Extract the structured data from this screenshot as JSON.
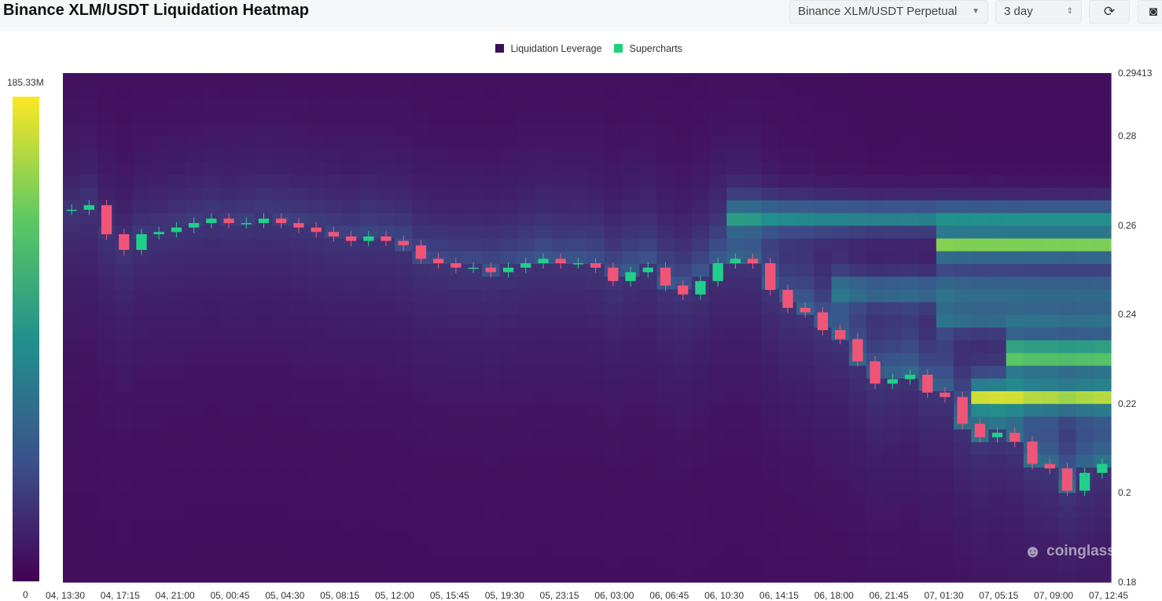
{
  "header": {
    "title": "Binance XLM/USDT Liquidation Heatmap",
    "symbol_select": "Binance XLM/USDT Perpetual",
    "range_select": "3 day",
    "refresh_icon": "refresh-icon",
    "camera_icon": "camera-icon"
  },
  "legend": [
    {
      "label": "Liquidation Leverage",
      "color": "#3b0f52"
    },
    {
      "label": "Supercharts",
      "color": "#1fd07a"
    }
  ],
  "colorbar": {
    "max_label": "185.33M",
    "min_label": "0"
  },
  "watermark": {
    "text": "coinglass",
    "icon": "coinglass-logo-icon"
  },
  "chart_data": {
    "type": "heatmap",
    "title": "Binance XLM/USDT Liquidation Heatmap",
    "x_ticks": [
      "04, 13:30",
      "04, 17:15",
      "04, 21:00",
      "05, 00:45",
      "05, 04:30",
      "05, 08:15",
      "05, 12:00",
      "05, 15:45",
      "05, 19:30",
      "05, 23:15",
      "06, 03:00",
      "06, 06:45",
      "06, 10:30",
      "06, 14:15",
      "06, 18:00",
      "06, 21:45",
      "07, 01:30",
      "07, 05:15",
      "07, 09:00",
      "07, 12:45"
    ],
    "y_ticks": [
      "0.29413",
      "0.28",
      "0.26",
      "0.24",
      "0.22",
      "0.2",
      "0.18"
    ],
    "ylim": [
      0.18,
      0.29413
    ],
    "colorscale": [
      "#440154",
      "#3b528b",
      "#21918c",
      "#5ec962",
      "#fde725"
    ],
    "color_range": [
      0,
      185330000
    ],
    "price_path": [
      [
        0,
        0.2635
      ],
      [
        1,
        0.2645
      ],
      [
        2,
        0.258
      ],
      [
        3,
        0.2545
      ],
      [
        4,
        0.258
      ],
      [
        5,
        0.2585
      ],
      [
        6,
        0.2595
      ],
      [
        7,
        0.2605
      ],
      [
        8,
        0.2615
      ],
      [
        9,
        0.2605
      ],
      [
        10,
        0.2605
      ],
      [
        11,
        0.2615
      ],
      [
        12,
        0.2605
      ],
      [
        13,
        0.2595
      ],
      [
        14,
        0.2585
      ],
      [
        15,
        0.2575
      ],
      [
        16,
        0.2565
      ],
      [
        17,
        0.2575
      ],
      [
        18,
        0.2565
      ],
      [
        19,
        0.2555
      ],
      [
        20,
        0.2525
      ],
      [
        21,
        0.2515
      ],
      [
        22,
        0.2505
      ],
      [
        23,
        0.2505
      ],
      [
        24,
        0.2495
      ],
      [
        25,
        0.2505
      ],
      [
        26,
        0.2515
      ],
      [
        27,
        0.2525
      ],
      [
        28,
        0.2515
      ],
      [
        29,
        0.2515
      ],
      [
        30,
        0.2505
      ],
      [
        31,
        0.2475
      ],
      [
        32,
        0.2495
      ],
      [
        33,
        0.2505
      ],
      [
        34,
        0.2465
      ],
      [
        35,
        0.2445
      ],
      [
        36,
        0.2475
      ],
      [
        37,
        0.2515
      ],
      [
        38,
        0.2525
      ],
      [
        39,
        0.2515
      ],
      [
        40,
        0.2455
      ],
      [
        41,
        0.2415
      ],
      [
        42,
        0.2405
      ],
      [
        43,
        0.2365
      ],
      [
        44,
        0.2345
      ],
      [
        45,
        0.2295
      ],
      [
        46,
        0.2245
      ],
      [
        47,
        0.2255
      ],
      [
        48,
        0.2265
      ],
      [
        49,
        0.2225
      ],
      [
        50,
        0.2215
      ],
      [
        51,
        0.2155
      ],
      [
        52,
        0.2125
      ],
      [
        53,
        0.2135
      ],
      [
        54,
        0.2115
      ],
      [
        55,
        0.2065
      ],
      [
        56,
        0.2055
      ],
      [
        57,
        0.2005
      ],
      [
        58,
        0.2045
      ],
      [
        59,
        0.2065
      ]
    ],
    "liquidation_bands": [
      {
        "price": 0.2555,
        "from_step": 50,
        "intensity": 0.82
      },
      {
        "price": 0.262,
        "from_step": 38,
        "intensity": 0.55
      },
      {
        "price": 0.231,
        "from_step": 54,
        "intensity": 1.0
      },
      {
        "price": 0.2215,
        "from_step": 52,
        "intensity": 0.85
      },
      {
        "price": 0.2455,
        "from_step": 44,
        "intensity": 0.42
      },
      {
        "price": 0.2395,
        "from_step": 50,
        "intensity": 0.4
      }
    ]
  }
}
